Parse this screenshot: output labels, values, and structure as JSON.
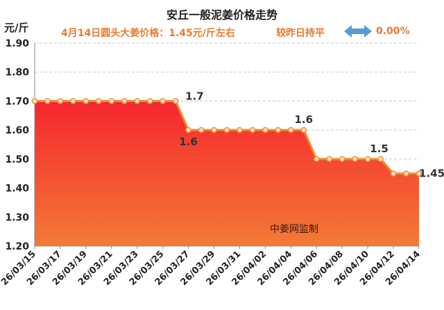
{
  "header": {
    "title": "安丘一般泥姜价格走势",
    "subtitle": "4月14日圆头大姜价格：1.45元/斤左右",
    "compare_text": "较昨日持平",
    "change_pct": "0.00%",
    "change_icon": "left-right-arrow-icon",
    "unit": "元/斤"
  },
  "colors": {
    "accent": "#ea7a2e",
    "line": "#f08a2c",
    "area_top": "#f5262e",
    "area_bottom": "#f47a35",
    "arrow": "#5b9bd5"
  },
  "chart_data": {
    "type": "area",
    "title": "安丘一般泥姜价格走势",
    "ylabel": "元/斤",
    "xlabel": "",
    "ylim": [
      1.2,
      1.9
    ],
    "yticks": [
      "1.20",
      "1.30",
      "1.40",
      "1.50",
      "1.60",
      "1.70",
      "1.80",
      "1.90"
    ],
    "grid": true,
    "x": [
      "26/03/15",
      "26/03/16",
      "26/03/17",
      "26/03/18",
      "26/03/19",
      "26/03/20",
      "26/03/21",
      "26/03/22",
      "26/03/23",
      "26/03/24",
      "26/03/25",
      "26/03/26",
      "26/03/27",
      "26/03/28",
      "26/03/29",
      "26/03/30",
      "26/03/31",
      "26/04/01",
      "26/04/02",
      "26/04/03",
      "26/04/04",
      "26/04/05",
      "26/04/06",
      "26/04/07",
      "26/04/08",
      "26/04/09",
      "26/04/10",
      "26/04/11",
      "26/04/12",
      "26/04/13",
      "26/04/14"
    ],
    "xtick_labels": [
      "26/03/15",
      "26/03/17",
      "26/03/19",
      "26/03/21",
      "26/03/23",
      "26/03/25",
      "26/03/27",
      "26/03/29",
      "26/03/31",
      "26/04/02",
      "26/04/04",
      "26/04/06",
      "26/04/08",
      "26/04/10",
      "26/04/12",
      "26/04/14"
    ],
    "series": [
      {
        "values": [
          1.7,
          1.7,
          1.7,
          1.7,
          1.7,
          1.7,
          1.7,
          1.7,
          1.7,
          1.7,
          1.7,
          1.7,
          1.6,
          1.6,
          1.6,
          1.6,
          1.6,
          1.6,
          1.6,
          1.6,
          1.6,
          1.6,
          1.5,
          1.5,
          1.5,
          1.5,
          1.5,
          1.5,
          1.45,
          1.45,
          1.45
        ]
      }
    ],
    "annotations": [
      {
        "index": 11,
        "text": "1.7"
      },
      {
        "index": 12,
        "text": "1.6"
      },
      {
        "index": 21,
        "text": "1.6"
      },
      {
        "index": 27,
        "text": "1.5"
      },
      {
        "index": 30,
        "text": "1.45"
      }
    ],
    "watermark": "中姜网监制"
  }
}
